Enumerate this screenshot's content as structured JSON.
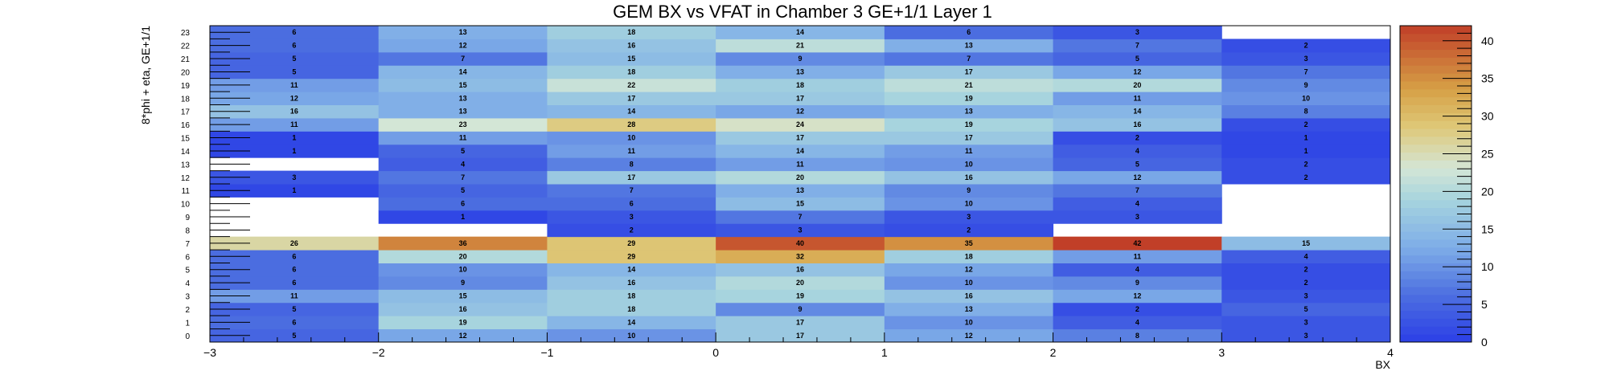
{
  "chart_data": {
    "type": "heatmap",
    "title": "GEM BX vs VFAT in Chamber 3 GE+1/1 Layer 1",
    "xlabel": "BX",
    "ylabel": "8*phi + eta, GE+1/1",
    "x_ticks": [
      "−3",
      "−2",
      "−1",
      "0",
      "1",
      "2",
      "3",
      "4"
    ],
    "x_bins": [
      -2.5,
      -1.5,
      -0.5,
      0.5,
      1.5,
      2.5,
      3.5
    ],
    "y_bins": [
      0,
      1,
      2,
      3,
      4,
      5,
      6,
      7,
      8,
      9,
      10,
      11,
      12,
      13,
      14,
      15,
      16,
      17,
      18,
      19,
      20,
      21,
      22,
      23
    ],
    "xlim": [
      -3,
      4
    ],
    "ylim": [
      0,
      24
    ],
    "zlim": [
      0,
      42
    ],
    "z_ticks": [
      "0",
      "5",
      "10",
      "15",
      "20",
      "25",
      "30",
      "35",
      "40"
    ],
    "values": [
      [
        5,
        6,
        5,
        11,
        6,
        6,
        6,
        26,
        null,
        null,
        null,
        1,
        3,
        null,
        1,
        1,
        11,
        16,
        12,
        11,
        5,
        5,
        6,
        6
      ],
      [
        12,
        19,
        16,
        15,
        9,
        10,
        20,
        36,
        null,
        1,
        6,
        5,
        7,
        4,
        5,
        11,
        23,
        13,
        13,
        15,
        14,
        7,
        12,
        13
      ],
      [
        10,
        14,
        18,
        18,
        16,
        14,
        29,
        29,
        2,
        3,
        6,
        7,
        17,
        8,
        11,
        10,
        28,
        14,
        17,
        22,
        18,
        15,
        16,
        18
      ],
      [
        17,
        17,
        9,
        19,
        20,
        16,
        32,
        40,
        3,
        7,
        15,
        13,
        20,
        11,
        14,
        17,
        24,
        12,
        17,
        18,
        13,
        9,
        21,
        14
      ],
      [
        12,
        10,
        13,
        16,
        10,
        12,
        18,
        35,
        2,
        3,
        10,
        9,
        16,
        10,
        11,
        17,
        19,
        13,
        19,
        21,
        17,
        7,
        13,
        6
      ],
      [
        8,
        4,
        2,
        12,
        9,
        4,
        11,
        42,
        null,
        3,
        4,
        7,
        12,
        5,
        4,
        2,
        16,
        14,
        11,
        20,
        12,
        5,
        7,
        3
      ],
      [
        3,
        3,
        5,
        3,
        2,
        2,
        4,
        15,
        null,
        null,
        null,
        null,
        2,
        2,
        1,
        1,
        2,
        8,
        10,
        9,
        7,
        3,
        2,
        null
      ]
    ]
  }
}
